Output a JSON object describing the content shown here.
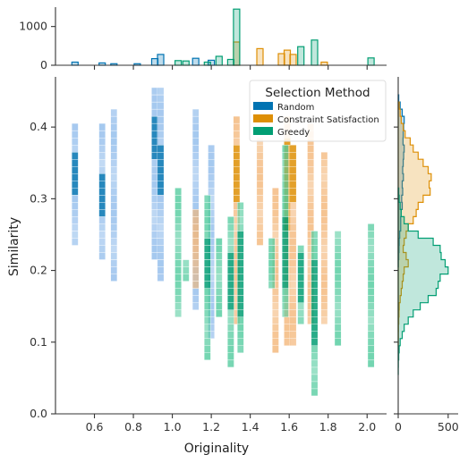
{
  "chart_data": {
    "type": "heatmap",
    "subtype": "joint 2D histogram with marginal histograms",
    "xlabel": "Originality",
    "ylabel": "Similarity",
    "x_range": [
      0.4,
      2.1
    ],
    "y_range": [
      0.0,
      0.47
    ],
    "x_ticks": [
      "0.6",
      "0.8",
      "1.0",
      "1.2",
      "1.4",
      "1.6",
      "1.8",
      "2.0"
    ],
    "y_ticks": [
      "0.0",
      "0.1",
      "0.2",
      "0.3",
      "0.4"
    ],
    "top_marginal": {
      "y_range": [
        0,
        1500
      ],
      "ticks": [
        "0",
        "1000"
      ]
    },
    "right_marginal": {
      "x_range": [
        0,
        600
      ],
      "ticks": [
        "0",
        "500"
      ]
    },
    "legend": {
      "title": "Selection Method",
      "position": "top-right",
      "entries": [
        "Random",
        "Constraint Satisfaction",
        "Greedy"
      ]
    },
    "series": [
      {
        "name": "Random",
        "color": "#0173b2",
        "cell_color": "#8fbbeb",
        "columns": [
          {
            "x": 0.5,
            "y": [
              0.24,
              0.4
            ],
            "dense": [
              0.31,
              0.36
            ]
          },
          {
            "x": 0.64,
            "y": [
              0.22,
              0.4
            ],
            "dense": [
              0.28,
              0.33
            ]
          },
          {
            "x": 0.7,
            "y": [
              0.19,
              0.42
            ],
            "dense": null
          },
          {
            "x": 0.91,
            "y": [
              0.22,
              0.45
            ],
            "dense": [
              0.36,
              0.42
            ]
          },
          {
            "x": 0.94,
            "y": [
              0.19,
              0.45
            ],
            "dense": [
              0.31,
              0.37
            ]
          },
          {
            "x": 1.12,
            "y": [
              0.15,
              0.42
            ],
            "dense": null
          },
          {
            "x": 1.2,
            "y": [
              0.1,
              0.37
            ],
            "dense": null
          }
        ],
        "top_marginal": [
          [
            0.5,
            80
          ],
          [
            0.64,
            60
          ],
          [
            0.7,
            40
          ],
          [
            0.82,
            40
          ],
          [
            0.91,
            170
          ],
          [
            0.94,
            280
          ],
          [
            1.12,
            180
          ],
          [
            1.2,
            130
          ]
        ],
        "right_marginal_peak": [
          0.41,
          60
        ]
      },
      {
        "name": "Constraint Satisfaction",
        "color": "#de8f05",
        "cell_color": "#f3b577",
        "columns": [
          {
            "x": 1.12,
            "y": [
              0.18,
              0.28
            ],
            "dense": null
          },
          {
            "x": 1.33,
            "y": [
              0.13,
              0.41
            ],
            "dense": [
              0.3,
              0.37
            ]
          },
          {
            "x": 1.45,
            "y": [
              0.24,
              0.39
            ],
            "dense": null
          },
          {
            "x": 1.53,
            "y": [
              0.09,
              0.31
            ],
            "dense": null
          },
          {
            "x": 1.59,
            "y": [
              0.1,
              0.41
            ],
            "dense": [
              0.26,
              0.38
            ]
          },
          {
            "x": 1.62,
            "y": [
              0.1,
              0.38
            ],
            "dense": [
              0.3,
              0.38
            ]
          },
          {
            "x": 1.71,
            "y": [
              0.12,
              0.4
            ],
            "dense": null
          },
          {
            "x": 1.78,
            "y": [
              0.12,
              0.36
            ],
            "dense": null
          }
        ],
        "top_marginal": [
          [
            1.33,
            600
          ],
          [
            1.45,
            430
          ],
          [
            1.56,
            300
          ],
          [
            1.59,
            390
          ],
          [
            1.62,
            280
          ],
          [
            1.78,
            80
          ]
        ],
        "right_marginal_peak": [
          0.33,
          320
        ]
      },
      {
        "name": "Greedy",
        "color": "#029e73",
        "cell_color": "#4fca9c",
        "columns": [
          {
            "x": 1.03,
            "y": [
              0.13,
              0.31
            ],
            "dense": null
          },
          {
            "x": 1.07,
            "y": [
              0.19,
              0.21
            ],
            "dense": null
          },
          {
            "x": 1.18,
            "y": [
              0.08,
              0.3
            ],
            "dense": [
              0.18,
              0.24
            ]
          },
          {
            "x": 1.24,
            "y": [
              0.14,
              0.24
            ],
            "dense": null
          },
          {
            "x": 1.3,
            "y": [
              0.07,
              0.27
            ],
            "dense": [
              0.15,
              0.22
            ]
          },
          {
            "x": 1.35,
            "y": [
              0.09,
              0.29
            ],
            "dense": [
              0.14,
              0.25
            ]
          },
          {
            "x": 1.51,
            "y": [
              0.17,
              0.24
            ],
            "dense": null
          },
          {
            "x": 1.58,
            "y": [
              0.13,
              0.37
            ],
            "dense": [
              0.18,
              0.27
            ]
          },
          {
            "x": 1.66,
            "y": [
              0.13,
              0.24
            ],
            "dense": [
              0.16,
              0.22
            ]
          },
          {
            "x": 1.73,
            "y": [
              0.03,
              0.25
            ],
            "dense": [
              0.1,
              0.21
            ]
          },
          {
            "x": 1.85,
            "y": [
              0.1,
              0.26
            ],
            "dense": null
          },
          {
            "x": 2.02,
            "y": [
              0.07,
              0.26
            ],
            "dense": null
          }
        ],
        "top_marginal": [
          [
            1.03,
            120
          ],
          [
            1.07,
            110
          ],
          [
            1.18,
            80
          ],
          [
            1.24,
            230
          ],
          [
            1.3,
            150
          ],
          [
            1.33,
            1450
          ],
          [
            1.66,
            480
          ],
          [
            1.73,
            650
          ],
          [
            2.02,
            190
          ]
        ],
        "right_marginal_peak": [
          0.2,
          520
        ]
      }
    ]
  }
}
